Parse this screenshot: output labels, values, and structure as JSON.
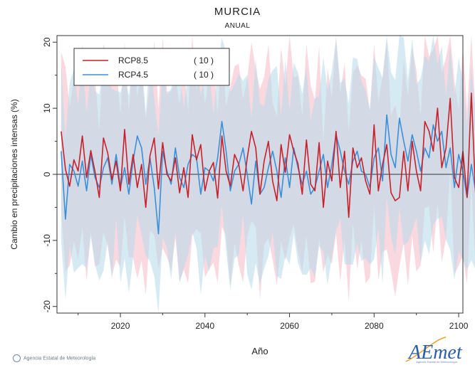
{
  "chart_data": {
    "type": "line",
    "title": "MURCIA",
    "subtitle": "ANUAL",
    "xlabel": "Año",
    "ylabel": "Cambio en precipitaciones intensas (%)",
    "xlim": [
      2005,
      2101
    ],
    "ylim": [
      -21,
      21
    ],
    "x_ticks": [
      2020,
      2040,
      2060,
      2080,
      2100
    ],
    "y_ticks": [
      -20,
      -10,
      0,
      10,
      20
    ],
    "legend_position": "top-left",
    "x_start": 2006,
    "series": [
      {
        "name": "RCP8.5",
        "count_label": "( 10 )",
        "color": "#c8202a",
        "band_color": "#f6b8c4",
        "values": [
          6.5,
          0.8,
          -1.8,
          2.2,
          0.5,
          5.8,
          -0.5,
          3.6,
          0.4,
          -3.5,
          5.5,
          3.2,
          -0.8,
          2.0,
          -2.5,
          6.8,
          -1.5,
          3.0,
          -2.0,
          1.5,
          -5.0,
          2.8,
          5.5,
          -2.2,
          4.8,
          0.0,
          -1.0,
          2.5,
          -2.8,
          1.0,
          -3.5,
          6.0,
          2.2,
          4.5,
          -2.5,
          0.5,
          1.8,
          -3.6,
          5.8,
          0.5,
          -1.8,
          3.0,
          1.5,
          -2.5,
          2.5,
          6.5,
          4.0,
          -3.0,
          2.0,
          5.0,
          -1.0,
          -4.0,
          4.5,
          0.3,
          6.0,
          3.5,
          1.6,
          -3.0,
          5.2,
          -1.5,
          -2.5,
          4.8,
          -5.0,
          2.0,
          -1.0,
          6.5,
          -2.0,
          3.5,
          -6.5,
          4.0,
          1.0,
          2.5,
          -1.0,
          -3.0,
          7.5,
          -2.5,
          1.5,
          4.5,
          -2.8,
          -4.0,
          -3.5,
          3.5,
          -2.5,
          5.0,
          0.5,
          -2.5,
          8.0,
          6.5,
          3.5,
          10.0,
          1.0,
          4.0,
          11.5,
          -0.5,
          -2.0,
          3.5,
          -3.5,
          12.3,
          -3.0,
          0.5,
          1.5,
          -3.6,
          2.5
        ]
      },
      {
        "name": "RCP4.5",
        "count_label": "( 10 )",
        "color": "#3a90d8",
        "band_color": "#b9dcea",
        "values": [
          3.5,
          -6.8,
          1.5,
          0.5,
          -1.8,
          2.0,
          -2.5,
          3.0,
          -0.5,
          -2.0,
          1.0,
          2.5,
          -1.5,
          3.0,
          -2.0,
          1.0,
          -3.0,
          2.0,
          5.8,
          4.0,
          -1.5,
          2.5,
          -2.0,
          -9.0,
          3.5,
          0.5,
          -1.5,
          4.0,
          -0.5,
          -2.0,
          1.5,
          3.0,
          2.5,
          -3.0,
          1.0,
          0.5,
          -1.0,
          2.5,
          8.0,
          3.5,
          -2.5,
          0.5,
          1.5,
          4.0,
          0.0,
          -4.5,
          2.0,
          -3.0,
          -2.0,
          1.0,
          3.5,
          0.5,
          -3.5,
          2.5,
          -2.0,
          4.0,
          1.0,
          -1.5,
          0.5,
          -3.0,
          -2.0,
          0.5,
          3.0,
          -2.0,
          1.5,
          6.0,
          3.5,
          0.5,
          -1.5,
          2.0,
          3.5,
          0.5,
          0.0,
          -2.0,
          2.5,
          4.0,
          -1.0,
          9.0,
          3.0,
          1.0,
          8.5,
          5.0,
          2.0,
          6.0,
          3.5,
          0.5,
          4.0,
          2.5,
          7.5,
          5.0,
          6.5,
          1.0,
          4.0,
          -2.0,
          3.0,
          0.5,
          -3.5,
          1.5,
          -2.5,
          0.0,
          1.5,
          -1.0,
          3.5
        ]
      }
    ]
  },
  "footer": {
    "agency": "Agencia Estatal de Meteorología"
  },
  "logo": {
    "text": "AEmet",
    "tagline": "Agencia Estatal de Meteorología"
  }
}
